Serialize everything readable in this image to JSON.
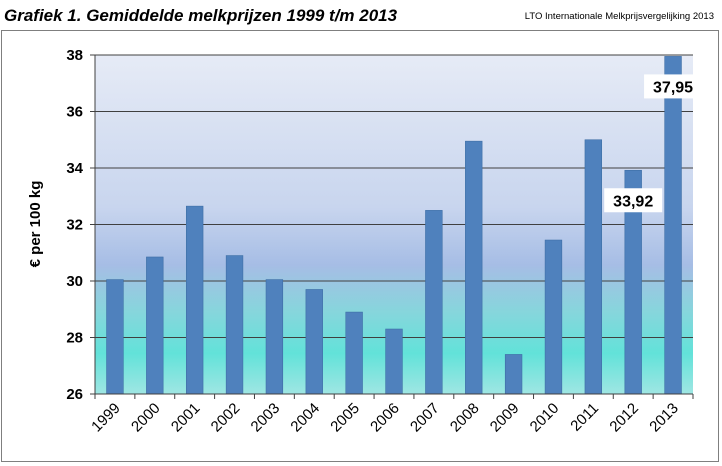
{
  "header": {
    "title": "Grafiek 1. Gemiddelde melkprijzen 1999 t/m 2013",
    "source": "LTO Internationale Melkprijsvergelijking 2013"
  },
  "chart_data": {
    "type": "bar",
    "title": "Grafiek 1. Gemiddelde melkprijzen 1999 t/m 2013",
    "xlabel": "",
    "ylabel": "€ per 100 kg",
    "categories": [
      "1999",
      "2000",
      "2001",
      "2002",
      "2003",
      "2004",
      "2005",
      "2006",
      "2007",
      "2008",
      "2009",
      "2010",
      "2011",
      "2012",
      "2013"
    ],
    "values": [
      30.05,
      30.85,
      32.65,
      30.9,
      30.05,
      29.7,
      28.9,
      28.3,
      32.5,
      34.95,
      27.4,
      31.45,
      35.0,
      33.92,
      37.95
    ],
    "ylim": [
      26,
      38
    ],
    "yticks": [
      "26",
      "28",
      "30",
      "32",
      "34",
      "36",
      "38"
    ],
    "data_labels": [
      {
        "category": "2012",
        "text": "33,92"
      },
      {
        "category": "2013",
        "text": "37,95"
      }
    ],
    "grid": true,
    "legend": "none",
    "colors": {
      "bar": "#4f81bd",
      "bar_edge": "#3d6ea5",
      "plot_bg_top": "#dde5f3",
      "plot_bg_mid": "#a9c2e6",
      "plot_bg_bottom": "#66e3db",
      "grid": "#404040"
    }
  }
}
